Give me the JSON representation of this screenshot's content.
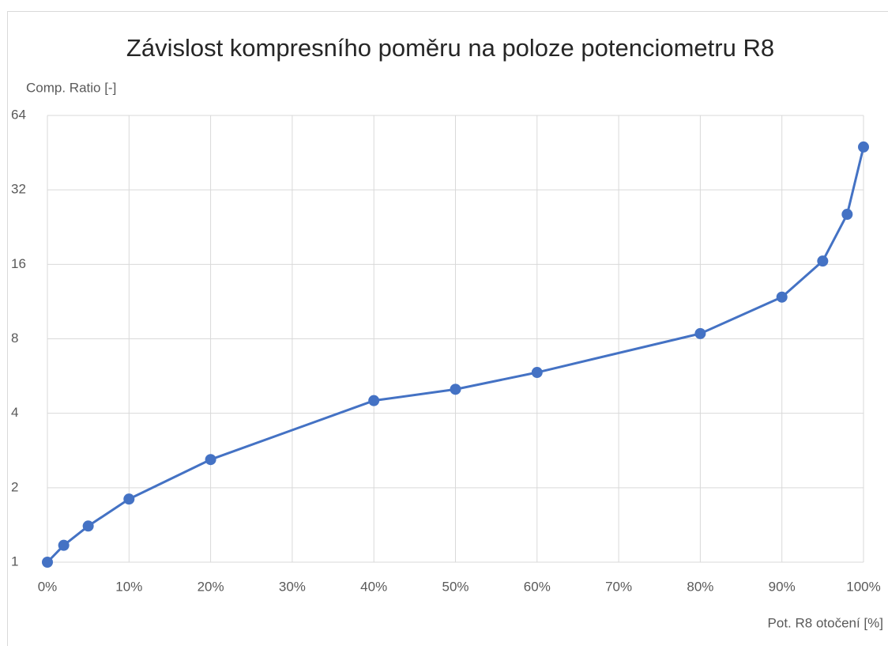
{
  "chart_data": {
    "type": "line",
    "title": "Závislost kompresního poměru na poloze potenciometru R8",
    "y_label": "Comp. Ratio [-]",
    "x_label": "Pot. R8 otočení [%]",
    "x": [
      0,
      2,
      5,
      10,
      20,
      40,
      50,
      60,
      80,
      90,
      95,
      98,
      100
    ],
    "series": [
      {
        "name": "Comp. Ratio",
        "color": "#4472c4",
        "values": [
          1,
          1.17,
          1.4,
          1.8,
          2.6,
          4.5,
          5.0,
          5.85,
          8.4,
          11.8,
          16.5,
          25.5,
          47.7
        ]
      }
    ],
    "xlim": [
      0,
      100
    ],
    "xticks": [
      {
        "value": 0,
        "label": "0%"
      },
      {
        "value": 10,
        "label": "10%"
      },
      {
        "value": 20,
        "label": "20%"
      },
      {
        "value": 30,
        "label": "30%"
      },
      {
        "value": 40,
        "label": "40%"
      },
      {
        "value": 50,
        "label": "50%"
      },
      {
        "value": 60,
        "label": "60%"
      },
      {
        "value": 70,
        "label": "70%"
      },
      {
        "value": 80,
        "label": "80%"
      },
      {
        "value": 90,
        "label": "90%"
      },
      {
        "value": 100,
        "label": "100%"
      }
    ],
    "ylim": [
      1,
      64
    ],
    "yticks": [
      1,
      2,
      4,
      8,
      16,
      32,
      64
    ],
    "y_scale": "log",
    "log_base": 2,
    "grid": true
  }
}
